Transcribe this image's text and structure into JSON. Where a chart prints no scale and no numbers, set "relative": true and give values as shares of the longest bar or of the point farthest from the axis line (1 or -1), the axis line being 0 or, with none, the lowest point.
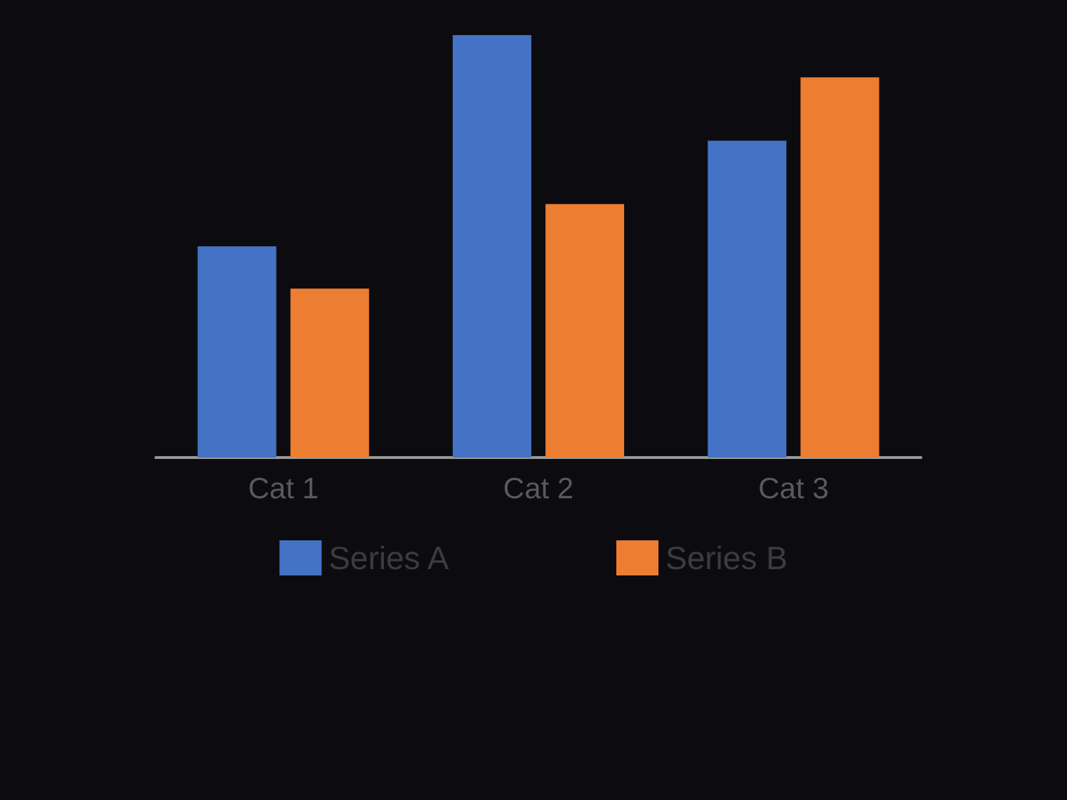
{
  "chart_data": {
    "type": "bar",
    "relative": true,
    "categories": [
      "Cat 1",
      "Cat 2",
      "Cat 3"
    ],
    "series": [
      {
        "name": "Series A",
        "color": "#4472c4",
        "values": [
          0.5,
          1,
          0.75
        ]
      },
      {
        "name": "Series B",
        "color": "#ed7d31",
        "values": [
          0.4,
          0.6,
          0.9
        ]
      }
    ],
    "legend": "bottom",
    "grid": false
  }
}
